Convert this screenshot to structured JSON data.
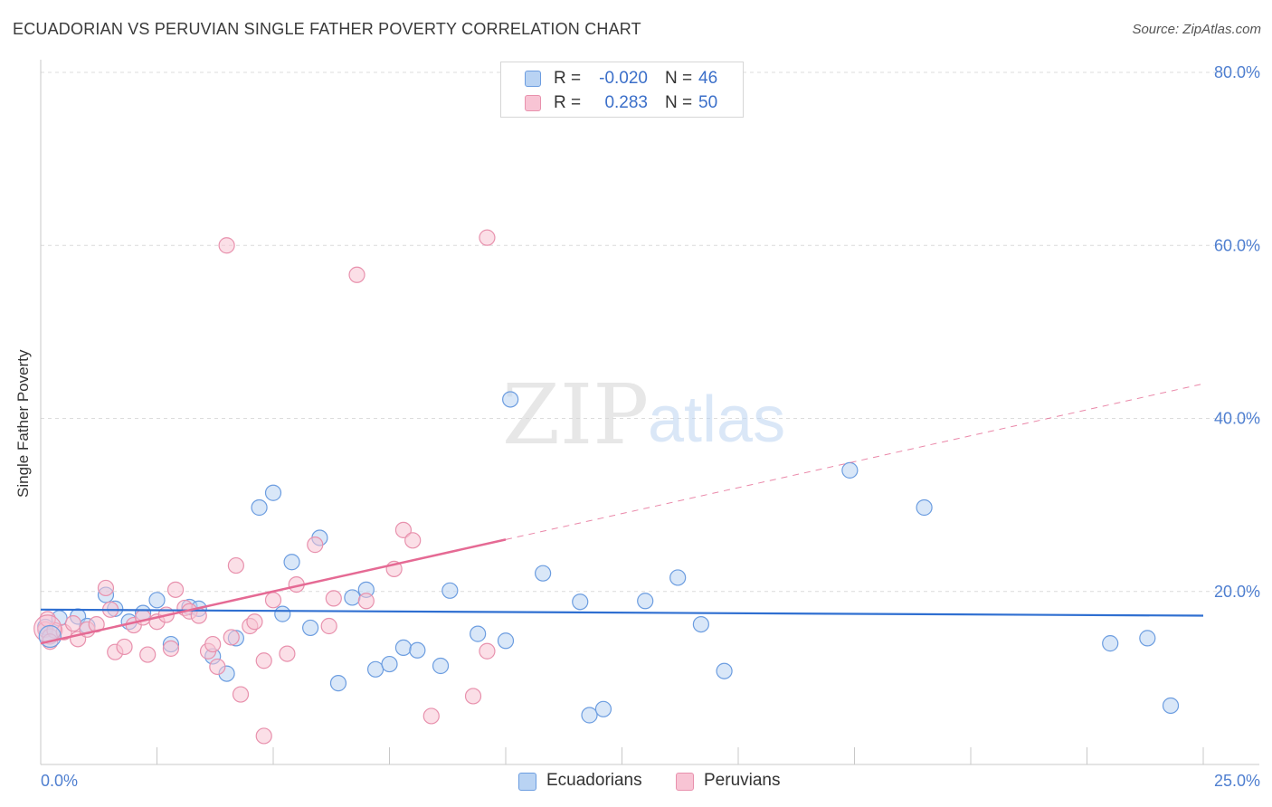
{
  "title": "ECUADORIAN VS PERUVIAN SINGLE FATHER POVERTY CORRELATION CHART",
  "source": "Source: ZipAtlas.com",
  "watermark": {
    "zip": "ZIP",
    "atlas": "atlas"
  },
  "colors": {
    "blue_fill": "#b9d3f3",
    "blue_stroke": "#6c9de0",
    "blue_line": "#2f6fd1",
    "pink_fill": "#f8c4d4",
    "pink_stroke": "#e891ad",
    "pink_line": "#e56a94",
    "axis_text": "#4f7fd0",
    "grid": "#dcdcdc"
  },
  "legend_top": {
    "rows": [
      {
        "r_label": "R =",
        "r_value": "-0.020",
        "n_label": "N =",
        "n_value": "46",
        "swatch": "blue"
      },
      {
        "r_label": "R =",
        "r_value": "0.283",
        "n_label": "N =",
        "n_value": "50",
        "swatch": "pink"
      }
    ]
  },
  "legend_bottom": {
    "items": [
      {
        "label": "Ecuadorians",
        "swatch": "blue"
      },
      {
        "label": "Peruvians",
        "swatch": "pink"
      }
    ]
  },
  "chart_data": {
    "type": "scatter",
    "title": "ECUADORIAN VS PERUVIAN SINGLE FATHER POVERTY CORRELATION CHART",
    "xlabel": "",
    "ylabel": "Single Father Poverty",
    "xlim": [
      0,
      25
    ],
    "ylim": [
      0,
      80
    ],
    "x_tick_labels": [
      "0.0%",
      "25.0%"
    ],
    "y_tick_labels": [
      "20.0%",
      "40.0%",
      "60.0%",
      "80.0%"
    ],
    "y_ticks": [
      20,
      40,
      60,
      80
    ],
    "grid": true,
    "series": [
      {
        "name": "Ecuadorians",
        "color": "blue",
        "r": -0.02,
        "n": 46,
        "trend": {
          "x0": 0,
          "y0": 17.9,
          "x1": 25,
          "y1": 17.2,
          "dashed_from": null
        },
        "points": [
          [
            0.1,
            15.9
          ],
          [
            0.4,
            16.9
          ],
          [
            0.8,
            17.1
          ],
          [
            1.0,
            16.0
          ],
          [
            1.4,
            19.6
          ],
          [
            1.6,
            18.0
          ],
          [
            1.9,
            16.5
          ],
          [
            2.2,
            17.5
          ],
          [
            2.5,
            19.0
          ],
          [
            2.8,
            13.9
          ],
          [
            3.2,
            18.2
          ],
          [
            3.4,
            18.0
          ],
          [
            3.7,
            12.5
          ],
          [
            4.0,
            10.5
          ],
          [
            4.2,
            14.6
          ],
          [
            4.7,
            29.7
          ],
          [
            5.0,
            31.4
          ],
          [
            5.2,
            17.4
          ],
          [
            5.4,
            23.4
          ],
          [
            5.8,
            15.8
          ],
          [
            6.0,
            26.2
          ],
          [
            6.4,
            9.4
          ],
          [
            6.7,
            19.3
          ],
          [
            7.0,
            20.2
          ],
          [
            7.2,
            11.0
          ],
          [
            7.5,
            11.6
          ],
          [
            7.8,
            13.5
          ],
          [
            8.1,
            13.2
          ],
          [
            8.6,
            11.4
          ],
          [
            8.8,
            20.1
          ],
          [
            9.4,
            15.1
          ],
          [
            10.1,
            42.2
          ],
          [
            10.0,
            14.3
          ],
          [
            10.8,
            22.1
          ],
          [
            11.6,
            18.8
          ],
          [
            11.8,
            5.7
          ],
          [
            12.1,
            6.4
          ],
          [
            13.0,
            18.9
          ],
          [
            13.7,
            21.6
          ],
          [
            14.2,
            16.2
          ],
          [
            14.7,
            10.8
          ],
          [
            17.4,
            34.0
          ],
          [
            19.0,
            29.7
          ],
          [
            23.0,
            14.0
          ],
          [
            23.8,
            14.6
          ],
          [
            24.3,
            6.8
          ]
        ]
      },
      {
        "name": "Peruvians",
        "color": "pink",
        "r": 0.283,
        "n": 50,
        "trend": {
          "x0": 0,
          "y0": 14.0,
          "x1": 25,
          "y1": 44.0,
          "dashed_from": 10.0
        },
        "points": [
          [
            0.1,
            15.6
          ],
          [
            0.2,
            14.8
          ],
          [
            0.3,
            15.5
          ],
          [
            0.5,
            15.3
          ],
          [
            0.7,
            16.3
          ],
          [
            0.8,
            14.5
          ],
          [
            1.0,
            15.6
          ],
          [
            1.2,
            16.2
          ],
          [
            1.4,
            20.4
          ],
          [
            1.5,
            17.9
          ],
          [
            1.6,
            13.0
          ],
          [
            1.8,
            13.6
          ],
          [
            2.0,
            16.1
          ],
          [
            2.2,
            17.0
          ],
          [
            2.3,
            12.7
          ],
          [
            2.5,
            16.5
          ],
          [
            2.7,
            17.3
          ],
          [
            2.8,
            13.4
          ],
          [
            2.9,
            20.2
          ],
          [
            3.1,
            18.1
          ],
          [
            3.2,
            17.7
          ],
          [
            3.4,
            17.2
          ],
          [
            3.6,
            13.1
          ],
          [
            3.7,
            13.9
          ],
          [
            3.8,
            11.3
          ],
          [
            4.0,
            60.0
          ],
          [
            4.1,
            14.7
          ],
          [
            4.2,
            23.0
          ],
          [
            4.3,
            8.1
          ],
          [
            4.5,
            16.0
          ],
          [
            4.6,
            16.5
          ],
          [
            4.8,
            12.0
          ],
          [
            4.8,
            3.3
          ],
          [
            5.0,
            19.0
          ],
          [
            5.3,
            12.8
          ],
          [
            5.5,
            20.8
          ],
          [
            5.9,
            25.4
          ],
          [
            6.3,
            19.2
          ],
          [
            6.2,
            16.0
          ],
          [
            6.8,
            56.6
          ],
          [
            7.0,
            18.9
          ],
          [
            7.6,
            22.6
          ],
          [
            7.8,
            27.1
          ],
          [
            8.0,
            25.9
          ],
          [
            8.4,
            5.6
          ],
          [
            9.3,
            7.9
          ],
          [
            9.6,
            13.1
          ],
          [
            9.6,
            60.9
          ],
          [
            0.15,
            16.8
          ],
          [
            0.2,
            14.2
          ]
        ]
      }
    ]
  }
}
